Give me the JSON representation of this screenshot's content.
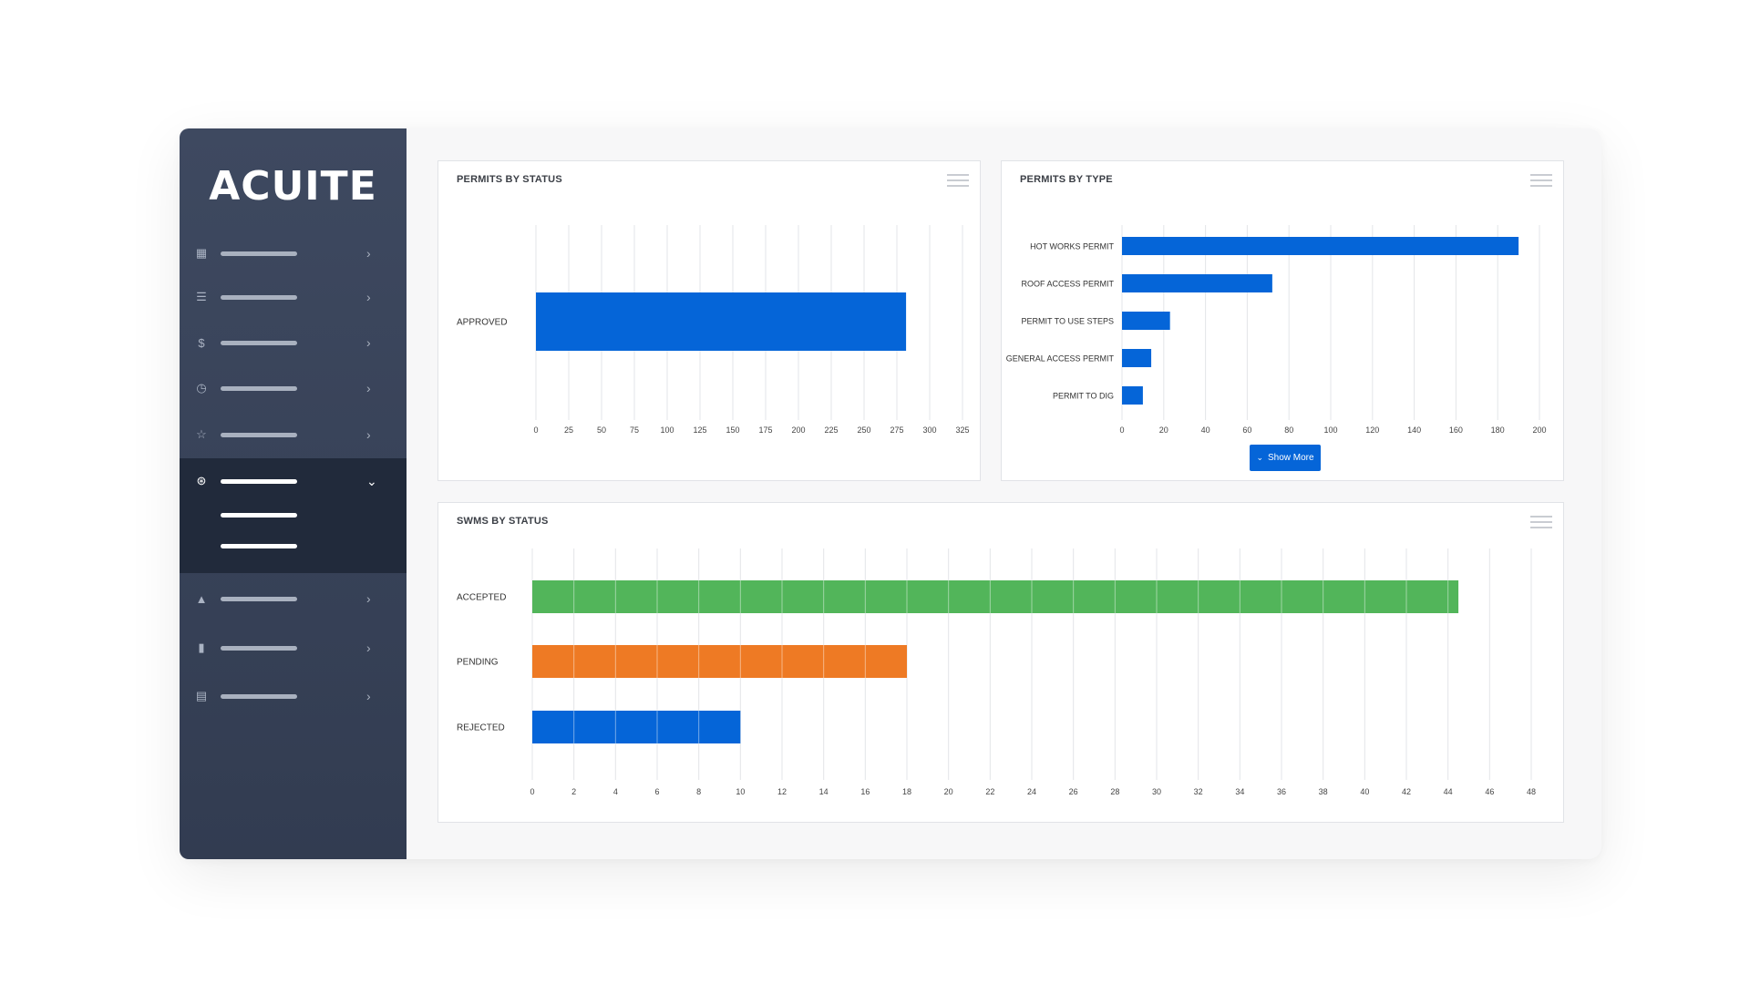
{
  "brand": {
    "logo_text": "ACUITE"
  },
  "sidebar": {
    "items": [
      {
        "icon": "dashboard-icon",
        "glyph": "▦"
      },
      {
        "icon": "list-icon",
        "glyph": "☰"
      },
      {
        "icon": "dollar-icon",
        "glyph": "$"
      },
      {
        "icon": "clock-icon",
        "glyph": "◷"
      },
      {
        "icon": "star-icon",
        "glyph": "☆"
      },
      {
        "icon": "globe-icon",
        "glyph": "⊛"
      },
      {
        "icon": "warning-icon",
        "glyph": "▲"
      },
      {
        "icon": "file-icon",
        "glyph": "▮"
      },
      {
        "icon": "document-icon",
        "glyph": "▤"
      }
    ]
  },
  "permits_by_status": {
    "title": "PERMITS BY STATUS",
    "chart_data": {
      "type": "bar",
      "orientation": "horizontal",
      "categories": [
        "APPROVED"
      ],
      "values": [
        282
      ],
      "ticks": [
        0,
        25,
        50,
        75,
        100,
        125,
        150,
        175,
        200,
        225,
        250,
        275,
        300,
        325
      ],
      "xlim": [
        0,
        325
      ],
      "color": "#0565d8"
    }
  },
  "permits_by_type": {
    "title": "PERMITS BY TYPE",
    "show_more_label": "Show More",
    "chart_data": {
      "type": "bar",
      "orientation": "horizontal",
      "categories": [
        "HOT WORKS PERMIT",
        "ROOF ACCESS PERMIT",
        "PERMIT TO USE STEPS",
        "GENERAL ACCESS PERMIT",
        "PERMIT TO DIG"
      ],
      "values": [
        190,
        72,
        23,
        14,
        10
      ],
      "ticks": [
        0,
        20,
        40,
        60,
        80,
        100,
        120,
        140,
        160,
        180,
        200
      ],
      "xlim": [
        0,
        200
      ],
      "color": "#0565d8"
    }
  },
  "swms_by_status": {
    "title": "SWMS BY STATUS",
    "chart_data": {
      "type": "bar",
      "orientation": "horizontal",
      "categories": [
        "ACCEPTED",
        "PENDING",
        "REJECTED"
      ],
      "values": [
        44.5,
        18,
        10
      ],
      "colors": [
        "#52b55a",
        "#ee7a24",
        "#0565d8"
      ],
      "ticks": [
        0,
        2,
        4,
        6,
        8,
        10,
        12,
        14,
        16,
        18,
        20,
        22,
        24,
        26,
        28,
        30,
        32,
        34,
        36,
        38,
        40,
        42,
        44,
        46,
        48
      ],
      "xlim": [
        0,
        48
      ]
    }
  }
}
